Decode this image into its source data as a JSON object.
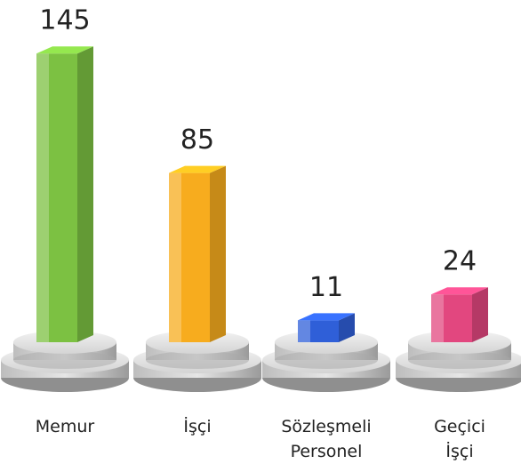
{
  "chart_data": {
    "type": "bar",
    "categories": [
      "Memur",
      "İşçi",
      "Sözleşmeli Personel",
      "Geçici İşçi"
    ],
    "values": [
      145,
      85,
      11,
      24
    ],
    "colors": [
      "#7cc142",
      "#f7ac1e",
      "#2f5fd8",
      "#e2477f"
    ]
  }
}
